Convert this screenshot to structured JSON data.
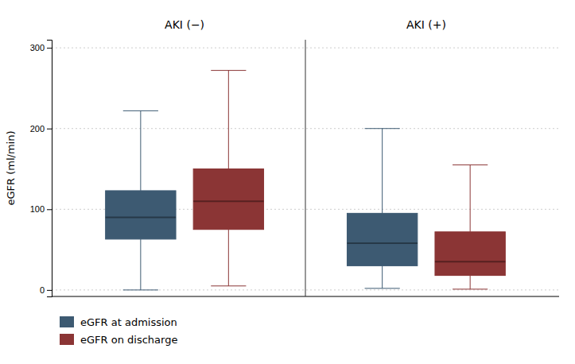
{
  "chart_data": {
    "type": "box",
    "ylabel": "eGFR (ml/min)",
    "categories": [
      "AKI (−)",
      "AKI (+)"
    ],
    "series": [
      {
        "name": "eGFR at admission",
        "color": "#3d5a72",
        "min": [
          0,
          2
        ],
        "q1": [
          63,
          30
        ],
        "median": [
          90,
          58
        ],
        "q3": [
          123,
          95
        ],
        "max": [
          222,
          200
        ]
      },
      {
        "name": "eGFR on discharge",
        "color": "#8b3535",
        "min": [
          5,
          1
        ],
        "q1": [
          75,
          18
        ],
        "median": [
          110,
          35
        ],
        "q3": [
          150,
          72
        ],
        "max": [
          272,
          155
        ]
      }
    ],
    "ylim": [
      -8,
      310
    ],
    "yticks": [
      0,
      100,
      200,
      300
    ],
    "grid": true,
    "legend": "bottom"
  }
}
